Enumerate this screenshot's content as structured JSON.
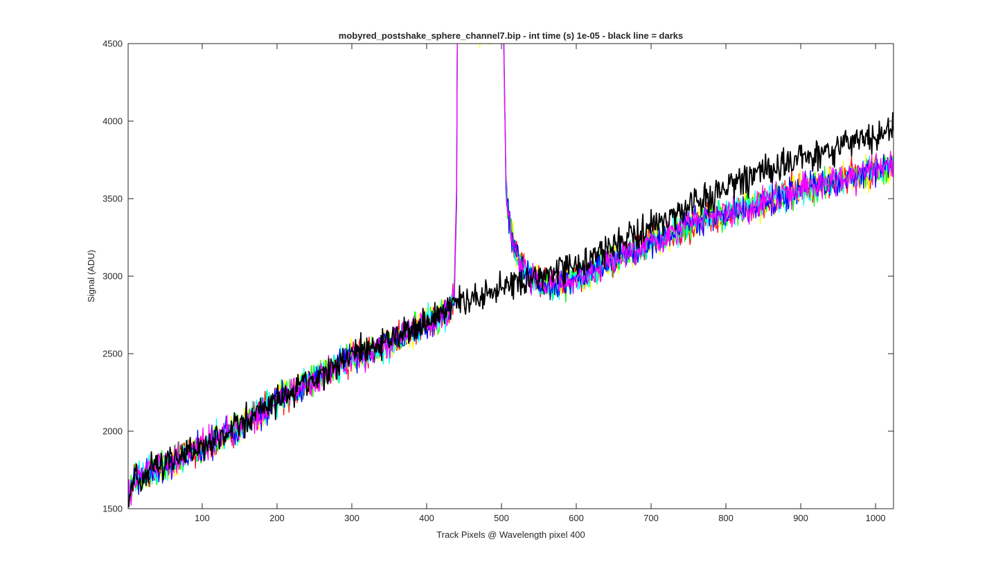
{
  "chart_data": {
    "type": "line",
    "title": "mobyred_postshake_sphere_channel7.bip - int time (s) 1e-05 - black line = darks",
    "xlabel": "Track Pixels @ Wavelength pixel 400",
    "ylabel": "Signal (ADU)",
    "xlim": [
      1,
      1024
    ],
    "ylim": [
      1500,
      4500
    ],
    "xticks": [
      100,
      200,
      300,
      400,
      500,
      600,
      700,
      800,
      900,
      1000
    ],
    "yticks": [
      1500,
      2000,
      2500,
      3000,
      3500,
      4000,
      4500
    ],
    "grid": false,
    "legend": "none",
    "noise_amplitude_adu": 80,
    "series": [
      {
        "color": "#ff0000",
        "x": [
          1,
          10,
          50,
          100,
          150,
          200,
          250,
          300,
          350,
          400,
          430,
          437,
          440,
          441,
          503,
          504,
          506,
          512,
          520,
          540,
          560,
          600,
          650,
          700,
          750,
          800,
          850,
          900,
          950,
          1000,
          1024
        ],
        "y": [
          1580,
          1700,
          1780,
          1900,
          2020,
          2200,
          2340,
          2470,
          2560,
          2700,
          2760,
          2900,
          3500,
          4600,
          4600,
          4200,
          3600,
          3300,
          3120,
          2980,
          2940,
          2980,
          3100,
          3220,
          3330,
          3400,
          3480,
          3560,
          3620,
          3680,
          3720
        ]
      },
      {
        "color": "#ffff00",
        "x": [
          1,
          10,
          50,
          100,
          150,
          200,
          250,
          300,
          350,
          400,
          430,
          437,
          440,
          441,
          503,
          504,
          506,
          512,
          520,
          540,
          560,
          600,
          650,
          700,
          750,
          800,
          850,
          900,
          950,
          1000,
          1024
        ],
        "y": [
          1580,
          1700,
          1780,
          1900,
          2020,
          2200,
          2340,
          2470,
          2560,
          2700,
          2760,
          2900,
          3500,
          4600,
          4600,
          4200,
          3600,
          3300,
          3120,
          2980,
          2940,
          2980,
          3100,
          3220,
          3330,
          3400,
          3480,
          3560,
          3620,
          3680,
          3720
        ]
      },
      {
        "color": "#00ff00",
        "x": [
          1,
          10,
          50,
          100,
          150,
          200,
          250,
          300,
          350,
          400,
          430,
          437,
          440,
          441,
          503,
          504,
          506,
          512,
          520,
          540,
          560,
          600,
          650,
          700,
          750,
          800,
          850,
          900,
          950,
          1000,
          1024
        ],
        "y": [
          1580,
          1700,
          1780,
          1900,
          2020,
          2200,
          2340,
          2470,
          2560,
          2700,
          2760,
          2900,
          3500,
          4600,
          4600,
          4200,
          3600,
          3300,
          3120,
          2980,
          2940,
          2980,
          3100,
          3220,
          3330,
          3400,
          3480,
          3560,
          3620,
          3680,
          3720
        ]
      },
      {
        "color": "#00ffff",
        "x": [
          1,
          10,
          50,
          100,
          150,
          200,
          250,
          300,
          350,
          400,
          430,
          437,
          440,
          441,
          503,
          504,
          506,
          512,
          520,
          540,
          560,
          600,
          650,
          700,
          750,
          800,
          850,
          900,
          950,
          1000,
          1024
        ],
        "y": [
          1580,
          1700,
          1780,
          1900,
          2020,
          2200,
          2340,
          2470,
          2560,
          2700,
          2760,
          2900,
          3500,
          4600,
          4600,
          4200,
          3600,
          3300,
          3120,
          2980,
          2940,
          2980,
          3100,
          3220,
          3330,
          3400,
          3480,
          3560,
          3620,
          3680,
          3720
        ]
      },
      {
        "color": "#0000ff",
        "x": [
          1,
          10,
          50,
          100,
          150,
          200,
          250,
          300,
          350,
          400,
          430,
          437,
          440,
          441,
          503,
          504,
          506,
          512,
          520,
          540,
          560,
          600,
          650,
          700,
          750,
          800,
          850,
          900,
          950,
          1000,
          1024
        ],
        "y": [
          1580,
          1700,
          1780,
          1900,
          2020,
          2200,
          2340,
          2470,
          2560,
          2700,
          2760,
          2900,
          3500,
          4600,
          4600,
          4200,
          3600,
          3300,
          3120,
          2980,
          2940,
          2980,
          3100,
          3220,
          3330,
          3400,
          3480,
          3560,
          3620,
          3680,
          3720
        ]
      },
      {
        "color": "#ff00ff",
        "x": [
          1,
          10,
          50,
          100,
          150,
          200,
          250,
          300,
          350,
          400,
          430,
          437,
          440,
          441,
          503,
          504,
          506,
          512,
          520,
          540,
          560,
          600,
          650,
          700,
          750,
          800,
          850,
          900,
          950,
          1000,
          1024
        ],
        "y": [
          1580,
          1700,
          1780,
          1900,
          2020,
          2200,
          2340,
          2470,
          2560,
          2700,
          2760,
          2900,
          3500,
          4600,
          4600,
          4200,
          3600,
          3300,
          3120,
          2980,
          2940,
          2980,
          3100,
          3220,
          3330,
          3400,
          3480,
          3560,
          3620,
          3680,
          3720
        ]
      },
      {
        "name": "darks",
        "color": "#000000",
        "x": [
          1,
          10,
          50,
          100,
          150,
          200,
          250,
          300,
          350,
          400,
          440,
          500,
          550,
          600,
          650,
          700,
          750,
          800,
          850,
          900,
          950,
          1000,
          1024
        ],
        "y": [
          1600,
          1700,
          1790,
          1910,
          2040,
          2200,
          2340,
          2480,
          2580,
          2710,
          2830,
          2920,
          2990,
          3080,
          3200,
          3320,
          3450,
          3570,
          3680,
          3760,
          3830,
          3900,
          3950
        ]
      }
    ]
  }
}
